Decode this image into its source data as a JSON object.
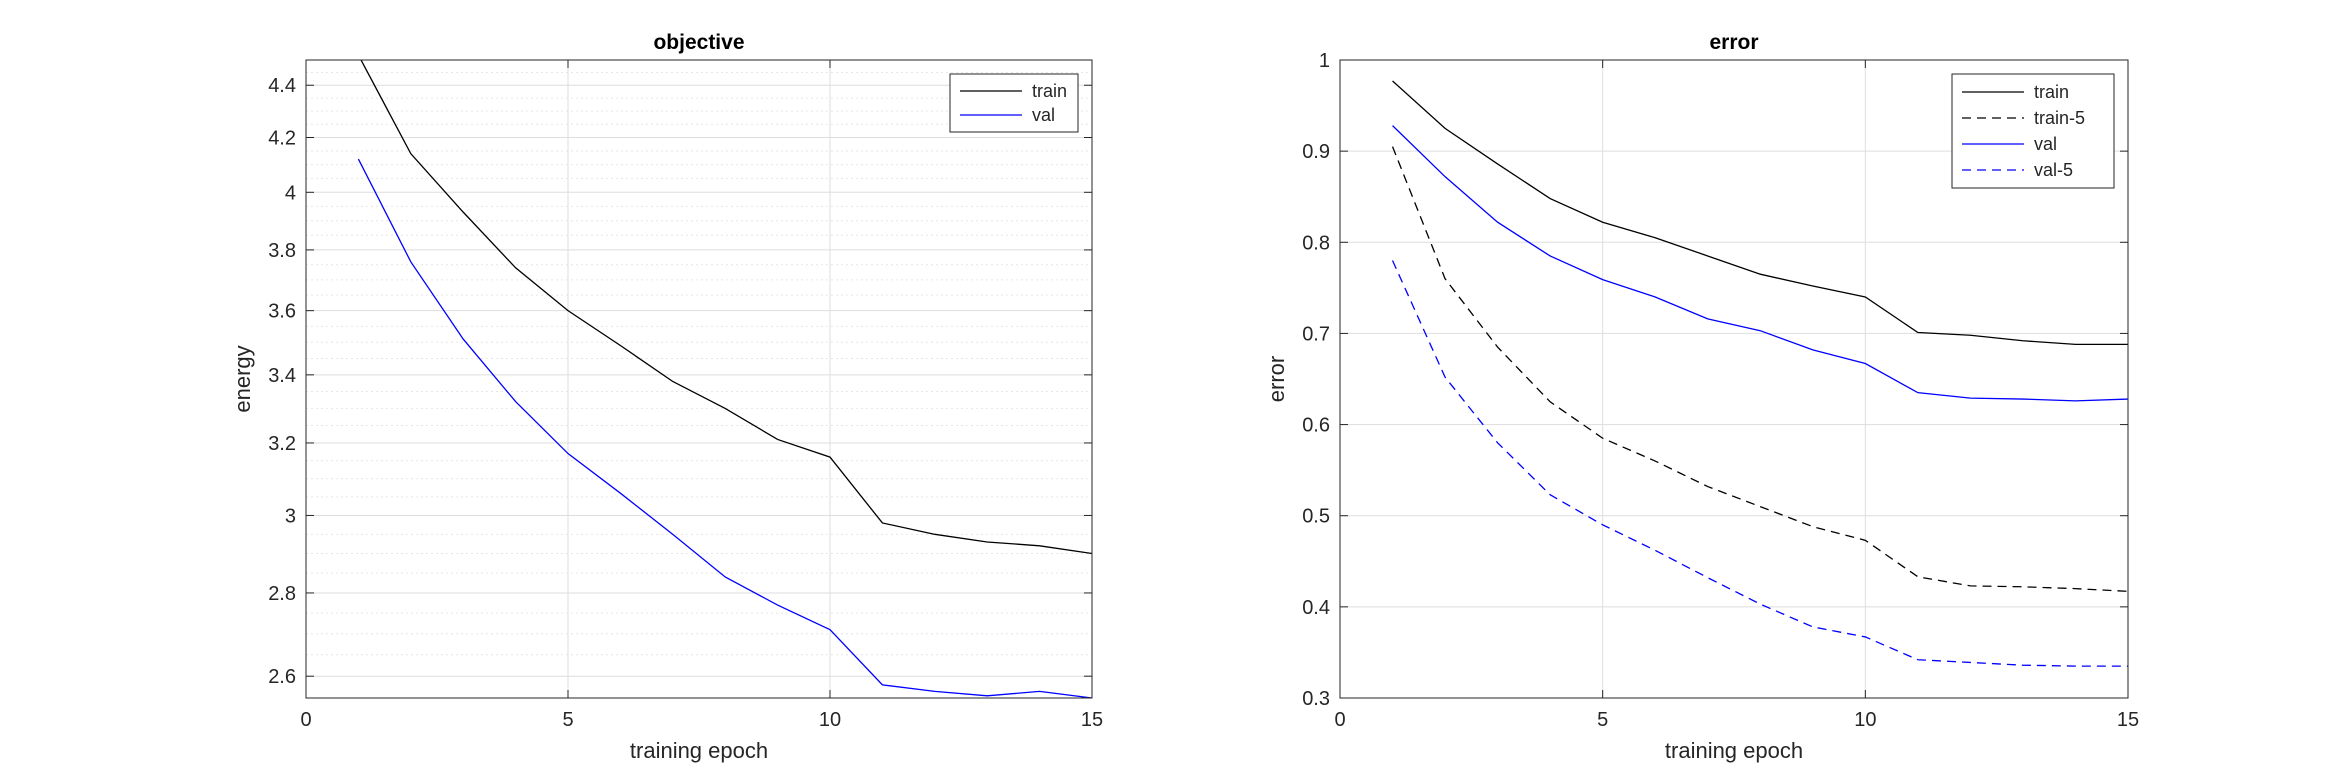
{
  "chart_data": [
    {
      "type": "line",
      "title": "objective",
      "xlabel": "training epoch",
      "ylabel": "energy",
      "xlim": [
        0,
        15
      ],
      "ylim": [
        2.55,
        4.5
      ],
      "yscale": "log",
      "xticks": [
        0,
        5,
        10,
        15
      ],
      "yticks": [
        2.6,
        2.8,
        3,
        3.2,
        3.4,
        3.6,
        3.8,
        4,
        4.2,
        4.4
      ],
      "grid": true,
      "minor_grid": true,
      "legend_location": "top-right",
      "series": [
        {
          "name": "train",
          "color": "#000000",
          "dash": "solid",
          "x": [
            1,
            2,
            3,
            4,
            5,
            6,
            7,
            8,
            9,
            10,
            11,
            12,
            13,
            14,
            15
          ],
          "values": [
            4.52,
            4.14,
            3.93,
            3.74,
            3.6,
            3.49,
            3.38,
            3.3,
            3.21,
            3.16,
            2.98,
            2.95,
            2.93,
            2.92,
            2.9
          ]
        },
        {
          "name": "val",
          "color": "#0000ff",
          "dash": "solid",
          "x": [
            1,
            2,
            3,
            4,
            5,
            6,
            7,
            8,
            9,
            10,
            11,
            12,
            13,
            14,
            15
          ],
          "values": [
            4.12,
            3.76,
            3.51,
            3.32,
            3.17,
            3.06,
            2.95,
            2.84,
            2.77,
            2.71,
            2.58,
            2.565,
            2.555,
            2.565,
            2.55
          ]
        }
      ]
    },
    {
      "type": "line",
      "title": "error",
      "xlabel": "training epoch",
      "ylabel": "error",
      "xlim": [
        0,
        15
      ],
      "ylim": [
        0.3,
        1
      ],
      "yscale": "linear",
      "xticks": [
        0,
        5,
        10,
        15
      ],
      "yticks": [
        0.3,
        0.4,
        0.5,
        0.6,
        0.7,
        0.8,
        0.9,
        1
      ],
      "grid": true,
      "minor_grid": false,
      "legend_location": "top-right",
      "series": [
        {
          "name": "train",
          "color": "#000000",
          "dash": "solid",
          "x": [
            1,
            2,
            3,
            4,
            5,
            6,
            7,
            8,
            9,
            10,
            11,
            12,
            13,
            14,
            15
          ],
          "values": [
            0.977,
            0.925,
            0.886,
            0.848,
            0.822,
            0.805,
            0.785,
            0.765,
            0.752,
            0.74,
            0.701,
            0.698,
            0.692,
            0.688,
            0.688
          ]
        },
        {
          "name": "train-5",
          "color": "#000000",
          "dash": "dashed",
          "x": [
            1,
            2,
            3,
            4,
            5,
            6,
            7,
            8,
            9,
            10,
            11,
            12,
            13,
            14,
            15
          ],
          "values": [
            0.905,
            0.76,
            0.685,
            0.625,
            0.585,
            0.56,
            0.532,
            0.51,
            0.488,
            0.473,
            0.433,
            0.423,
            0.422,
            0.42,
            0.417
          ]
        },
        {
          "name": "val",
          "color": "#0000ff",
          "dash": "solid",
          "x": [
            1,
            2,
            3,
            4,
            5,
            6,
            7,
            8,
            9,
            10,
            11,
            12,
            13,
            14,
            15
          ],
          "values": [
            0.928,
            0.872,
            0.822,
            0.785,
            0.759,
            0.74,
            0.716,
            0.703,
            0.682,
            0.667,
            0.635,
            0.629,
            0.628,
            0.626,
            0.628
          ]
        },
        {
          "name": "val-5",
          "color": "#0000ff",
          "dash": "dashed",
          "x": [
            1,
            2,
            3,
            4,
            5,
            6,
            7,
            8,
            9,
            10,
            11,
            12,
            13,
            14,
            15
          ],
          "values": [
            0.78,
            0.652,
            0.58,
            0.523,
            0.49,
            0.462,
            0.432,
            0.403,
            0.378,
            0.367,
            0.342,
            0.339,
            0.336,
            0.335,
            0.335
          ]
        }
      ]
    }
  ]
}
